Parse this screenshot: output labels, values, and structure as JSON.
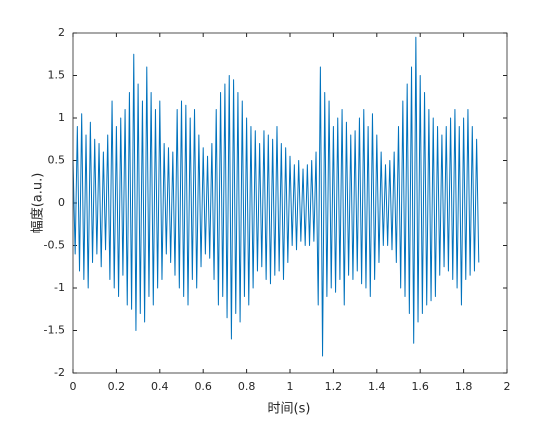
{
  "chart_data": {
    "type": "line",
    "x_label": "时间(s)",
    "y_label": "幅度(a.u.)",
    "xlim": [
      0,
      2
    ],
    "ylim": [
      -2,
      2
    ],
    "xticks": [
      0,
      0.2,
      0.4,
      0.6,
      0.8,
      1,
      1.2,
      1.4,
      1.6,
      1.8,
      2
    ],
    "yticks": [
      -2,
      -1.5,
      -1,
      -0.5,
      0,
      0.5,
      1,
      1.5,
      2
    ],
    "grid": false,
    "x": [
      0,
      0.01,
      0.02,
      0.03,
      0.04,
      0.05,
      0.06,
      0.07,
      0.08,
      0.09,
      0.1,
      0.11,
      0.12,
      0.13,
      0.14,
      0.15,
      0.16,
      0.17,
      0.18,
      0.19,
      0.2,
      0.21,
      0.22,
      0.23,
      0.24,
      0.25,
      0.26,
      0.27,
      0.28,
      0.29,
      0.3,
      0.31,
      0.32,
      0.33,
      0.34,
      0.35,
      0.36,
      0.37,
      0.38,
      0.39,
      0.4,
      0.41,
      0.42,
      0.43,
      0.44,
      0.45,
      0.46,
      0.47,
      0.48,
      0.49,
      0.5,
      0.51,
      0.52,
      0.53,
      0.54,
      0.55,
      0.56,
      0.57,
      0.58,
      0.59,
      0.6,
      0.61,
      0.62,
      0.63,
      0.64,
      0.65,
      0.66,
      0.67,
      0.68,
      0.69,
      0.7,
      0.71,
      0.72,
      0.73,
      0.74,
      0.75,
      0.76,
      0.77,
      0.78,
      0.79,
      0.8,
      0.81,
      0.82,
      0.83,
      0.84,
      0.85,
      0.86,
      0.87,
      0.88,
      0.89,
      0.9,
      0.91,
      0.92,
      0.93,
      0.94,
      0.95,
      0.96,
      0.97,
      0.98,
      0.99,
      1,
      1.01,
      1.02,
      1.03,
      1.04,
      1.05,
      1.06,
      1.07,
      1.08,
      1.09,
      1.1,
      1.11,
      1.12,
      1.13,
      1.14,
      1.15,
      1.16,
      1.17,
      1.18,
      1.19,
      1.2,
      1.21,
      1.22,
      1.23,
      1.24,
      1.25,
      1.26,
      1.27,
      1.28,
      1.29,
      1.3,
      1.31,
      1.32,
      1.33,
      1.34,
      1.35,
      1.36,
      1.37,
      1.38,
      1.39,
      1.4,
      1.41,
      1.42,
      1.43,
      1.44,
      1.45,
      1.46,
      1.47,
      1.48,
      1.49,
      1.5,
      1.51,
      1.52,
      1.53,
      1.54,
      1.55,
      1.56,
      1.57,
      1.58,
      1.59,
      1.6,
      1.61,
      1.62,
      1.63,
      1.64,
      1.65,
      1.66,
      1.67,
      1.68,
      1.69,
      1.7,
      1.71,
      1.72,
      1.73,
      1.74,
      1.75,
      1.76,
      1.77,
      1.78,
      1.79,
      1.8,
      1.81,
      1.82,
      1.83,
      1.84,
      1.85,
      1.86,
      1.87
    ],
    "series": [
      {
        "color": "#0072bd",
        "values": [
          0.5,
          -0.6,
          0.9,
          -0.8,
          1.05,
          -0.9,
          0.8,
          -1.0,
          0.95,
          -0.7,
          0.75,
          -0.6,
          0.7,
          -0.75,
          0.6,
          -0.55,
          0.8,
          -0.9,
          1.2,
          -1.0,
          0.9,
          -1.1,
          1.0,
          -0.85,
          1.1,
          -1.2,
          1.3,
          -1.25,
          1.75,
          -1.5,
          1.4,
          -1.3,
          1.2,
          -1.4,
          1.6,
          -1.1,
          1.3,
          -1.2,
          1.1,
          -1.0,
          1.2,
          -0.9,
          0.7,
          -0.6,
          0.65,
          -0.7,
          0.6,
          -0.85,
          1.1,
          -1.0,
          1.2,
          -1.1,
          1.15,
          -1.2,
          1.0,
          -0.9,
          1.1,
          -1.0,
          0.8,
          -0.75,
          0.65,
          -0.6,
          0.55,
          -0.65,
          0.7,
          -0.9,
          1.1,
          -1.2,
          1.3,
          -1.1,
          1.4,
          -1.35,
          1.5,
          -1.6,
          1.45,
          -1.3,
          1.3,
          -1.4,
          1.2,
          -1.1,
          1.0,
          -1.2,
          0.9,
          -1.0,
          0.85,
          -0.8,
          0.7,
          -0.75,
          0.85,
          -0.9,
          0.8,
          -0.95,
          0.75,
          -0.85,
          0.9,
          -0.8,
          0.7,
          -0.9,
          0.65,
          -0.7,
          0.55,
          -0.5,
          0.45,
          -0.55,
          0.5,
          -0.45,
          0.4,
          -0.5,
          0.45,
          -0.5,
          0.5,
          -0.45,
          0.6,
          -1.2,
          1.6,
          -1.8,
          1.3,
          -1.1,
          1.2,
          -1.0,
          0.9,
          -1.05,
          1.0,
          -0.9,
          1.1,
          -1.2,
          0.95,
          -0.85,
          0.8,
          -0.9,
          0.85,
          -0.8,
          1.0,
          -0.95,
          1.1,
          -1.0,
          0.9,
          -1.1,
          1.05,
          -0.9,
          0.8,
          -0.7,
          0.6,
          -0.5,
          0.45,
          -0.5,
          0.5,
          -0.55,
          0.6,
          -0.7,
          0.9,
          -1.0,
          1.2,
          -1.1,
          1.4,
          -1.3,
          1.6,
          -1.65,
          1.95,
          -1.4,
          1.5,
          -1.3,
          1.3,
          -1.2,
          1.1,
          -1.15,
          1.0,
          -1.1,
          0.9,
          -0.85,
          0.8,
          -0.75,
          0.9,
          -0.8,
          1.0,
          -0.9,
          1.1,
          -1.0,
          0.9,
          -1.2,
          1.0,
          -0.9,
          1.1,
          -0.85,
          0.9,
          -0.8,
          0.75,
          -0.7
        ]
      }
    ]
  }
}
